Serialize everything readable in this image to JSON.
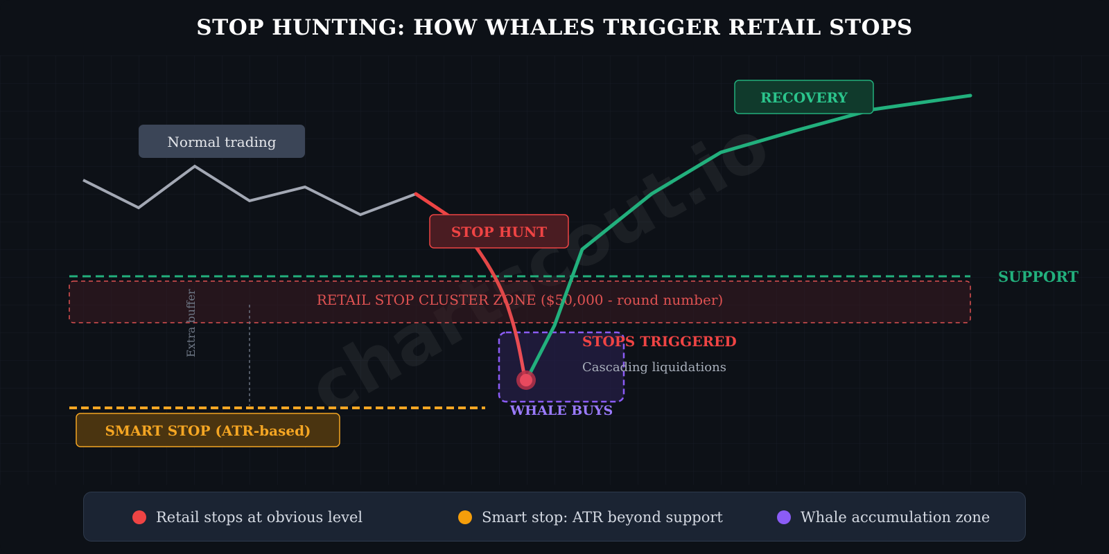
{
  "title": "STOP HUNTING: HOW WHALES TRIGGER RETAIL STOPS",
  "watermark": "chartscout.io",
  "labels": {
    "normal_trading": "Normal trading",
    "stop_hunt": "STOP HUNT",
    "recovery": "RECOVERY",
    "support": "SUPPORT",
    "cluster_zone": "RETAIL STOP CLUSTER ZONE ($50,000 - round number)",
    "extra_buffer": "Extra buffer",
    "stops_triggered": "STOPS TRIGGERED",
    "cascading": "Cascading liquidations",
    "whale_buys": "WHALE BUYS",
    "smart_stop": "SMART STOP (ATR-based)"
  },
  "legend": [
    {
      "label": "Retail stops at obvious level",
      "color": "#ef4444"
    },
    {
      "label": "Smart stop: ATR beyond support",
      "color": "#f59e0b"
    },
    {
      "label": "Whale accumulation zone",
      "color": "#8b5cf6"
    }
  ],
  "colors": {
    "normal_line": "#a3a8b4",
    "hunt_line": "#ef4444",
    "recovery_line": "#22b07d",
    "support": "#22b07d",
    "cluster": "#e05252",
    "smart_stop": "#f5a623",
    "whale": "#8b5cf6"
  }
}
